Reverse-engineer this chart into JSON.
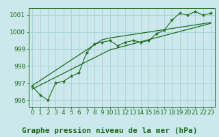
{
  "xlabel": "Graphe pression niveau de la mer (hPa)",
  "bg_color": "#cce8ec",
  "grid_color": "#aad4da",
  "line_color": "#1a6b1a",
  "ylim": [
    995.6,
    1001.4
  ],
  "yticks": [
    996,
    997,
    998,
    999,
    1000,
    1001
  ],
  "xlim": [
    -0.5,
    23.5
  ],
  "xticks": [
    0,
    1,
    2,
    3,
    4,
    5,
    6,
    7,
    8,
    9,
    10,
    11,
    12,
    13,
    14,
    15,
    16,
    17,
    18,
    19,
    20,
    21,
    22,
    23
  ],
  "pressure_data": [
    996.8,
    996.3,
    996.0,
    997.0,
    997.1,
    997.4,
    997.6,
    998.8,
    999.3,
    999.4,
    999.5,
    999.2,
    999.4,
    999.5,
    999.4,
    999.5,
    999.9,
    1000.1,
    1000.7,
    1001.1,
    1001.0,
    1001.2,
    1001.0,
    1001.1
  ],
  "trend_low": [
    996.65,
    996.88,
    997.11,
    997.34,
    997.57,
    997.8,
    998.03,
    998.26,
    998.49,
    998.72,
    998.95,
    999.07,
    999.19,
    999.31,
    999.43,
    999.55,
    999.67,
    999.79,
    999.91,
    1000.03,
    1000.15,
    1000.27,
    1000.39,
    1000.51
  ],
  "trend_high": [
    996.85,
    997.15,
    997.45,
    997.75,
    998.05,
    998.35,
    998.65,
    998.95,
    999.25,
    999.55,
    999.65,
    999.72,
    999.79,
    999.86,
    999.93,
    1000.0,
    1000.07,
    1000.14,
    1000.21,
    1000.28,
    1000.35,
    1000.42,
    1000.49,
    1000.56
  ],
  "xlabel_fontsize": 8,
  "tick_fontsize": 6.5
}
